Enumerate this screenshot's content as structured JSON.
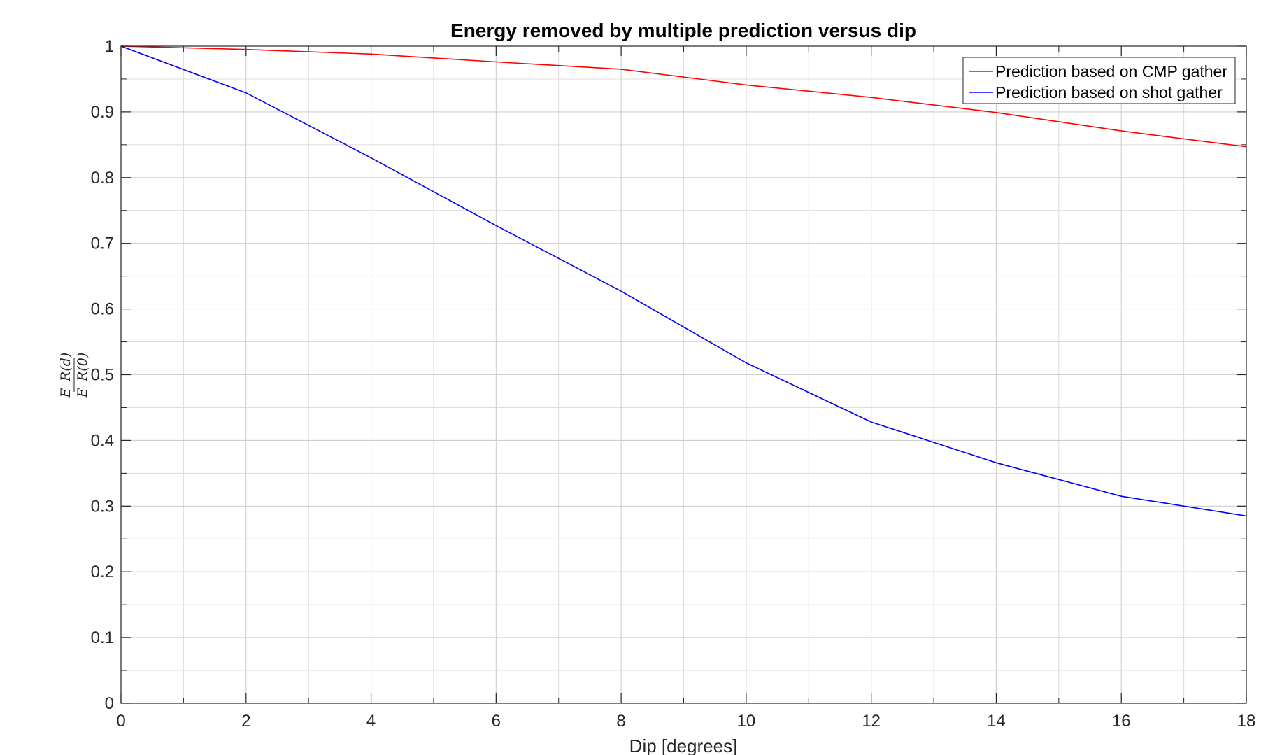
{
  "chart_data": {
    "type": "line",
    "title": "Energy removed by multiple prediction versus dip",
    "xlabel": "Dip [degrees]",
    "ylabel": {
      "numerator": "E_R(d)",
      "denominator": "E_R(0)"
    },
    "xlim": [
      0,
      18
    ],
    "ylim": [
      0,
      1
    ],
    "xticks": [
      0,
      2,
      4,
      6,
      8,
      10,
      12,
      14,
      16,
      18
    ],
    "yticks": [
      0,
      0.1,
      0.2,
      0.3,
      0.4,
      0.5,
      0.6,
      0.7,
      0.8,
      0.9,
      1
    ],
    "xtick_labels": [
      "0",
      "2",
      "4",
      "6",
      "8",
      "10",
      "12",
      "14",
      "16",
      "18"
    ],
    "ytick_labels": [
      "0",
      "0.1",
      "0.2",
      "0.3",
      "0.4",
      "0.5",
      "0.6",
      "0.7",
      "0.8",
      "0.9",
      "1"
    ],
    "grid": true,
    "minor_grid": true,
    "legend_position": "top-right",
    "series": [
      {
        "name": "Prediction based on CMP gather",
        "color": "#ff0000",
        "x": [
          0,
          2,
          4,
          6,
          8,
          10,
          12,
          14,
          16,
          18
        ],
        "y": [
          1.0,
          0.995,
          0.988,
          0.976,
          0.965,
          0.941,
          0.922,
          0.899,
          0.871,
          0.847
        ]
      },
      {
        "name": "Prediction based on shot gather",
        "color": "#0000ff",
        "x": [
          0,
          2,
          4,
          6,
          8,
          10,
          12,
          14,
          16,
          18
        ],
        "y": [
          1.0,
          0.929,
          0.83,
          0.727,
          0.627,
          0.518,
          0.428,
          0.366,
          0.315,
          0.285
        ]
      }
    ]
  }
}
